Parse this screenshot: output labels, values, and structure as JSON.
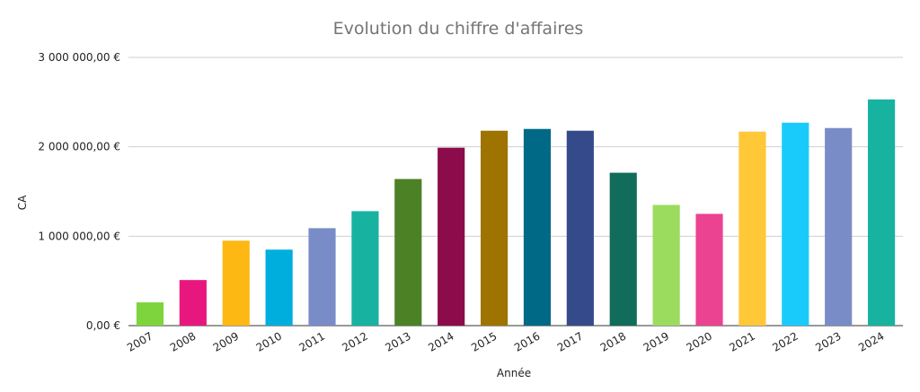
{
  "chart_data": {
    "type": "bar",
    "title": "Evolution du chiffre d'affaires",
    "xlabel": "Année",
    "ylabel": "CA",
    "ylim": [
      0,
      3000000
    ],
    "yticks": [
      {
        "value": 0,
        "label": "0,00 €"
      },
      {
        "value": 1000000,
        "label": "1 000 000,00 €"
      },
      {
        "value": 2000000,
        "label": "2 000 000,00 €"
      },
      {
        "value": 3000000,
        "label": "3 000 000,00 €"
      }
    ],
    "grid": true,
    "legend": "none",
    "categories": [
      "2007",
      "2008",
      "2009",
      "2010",
      "2011",
      "2012",
      "2013",
      "2014",
      "2015",
      "2016",
      "2017",
      "2018",
      "2019",
      "2020",
      "2021",
      "2022",
      "2023",
      "2024"
    ],
    "values": [
      260000,
      510000,
      950000,
      850000,
      1090000,
      1280000,
      1640000,
      1990000,
      2180000,
      2200000,
      2180000,
      1710000,
      1350000,
      1250000,
      2170000,
      2270000,
      2210000,
      2530000
    ],
    "colors": [
      "#7ed43c",
      "#e8177d",
      "#fdb813",
      "#00aede",
      "#7a8cc8",
      "#18b2a1",
      "#4c8126",
      "#8c0b4a",
      "#9f7300",
      "#006a86",
      "#354a8a",
      "#116c5b",
      "#9bdc5e",
      "#ec4292",
      "#ffc839",
      "#19cbfb",
      "#7a8cc8",
      "#18b2a1"
    ]
  }
}
